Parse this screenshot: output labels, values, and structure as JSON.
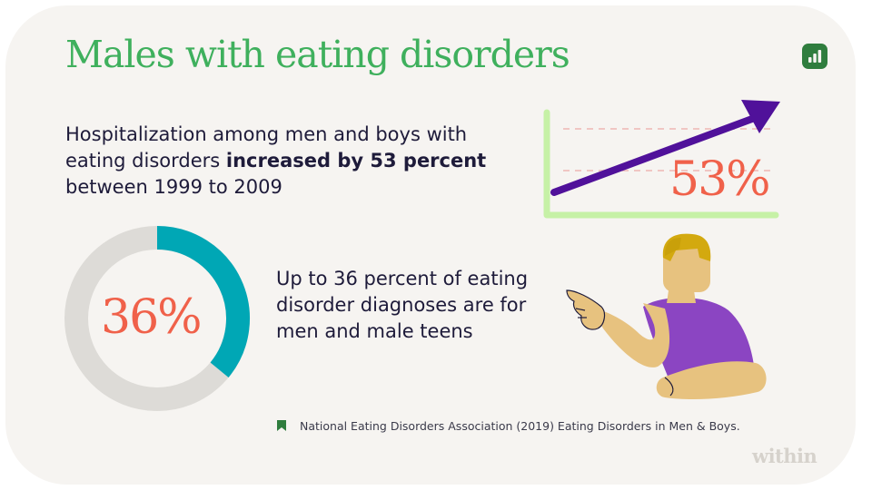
{
  "title": "Males with eating disorders",
  "stat_hospitalization": {
    "text_before": "Hospitalization among men and boys with eating disorders ",
    "text_bold": "increased by 53 percent",
    "text_after": " between 1999 to 2009",
    "percent_label": "53%"
  },
  "stat_diagnoses": {
    "text": "Up to 36 percent of eating disorder diagnoses are for men and male teens",
    "percent_label": "36%",
    "percent_value": 36
  },
  "source": "National Eating Disorders Association (2019) Eating Disorders in Men & Boys.",
  "brand": "within",
  "icons": [
    "chart-app-icon",
    "bookmark-icon",
    "trend-arrow-icon"
  ],
  "colors": {
    "title_green": "#3fb05d",
    "accent_orange": "#f0614a",
    "donut_teal": "#00a7b5",
    "donut_gray": "#dddbd7",
    "arrow_purple": "#50119a",
    "axis_green": "#c6f1a6",
    "text_dark": "#1e1b3a",
    "shirt_purple": "#8b45c2",
    "hair_gold": "#d3a90f",
    "skin": "#e7c27f"
  }
}
